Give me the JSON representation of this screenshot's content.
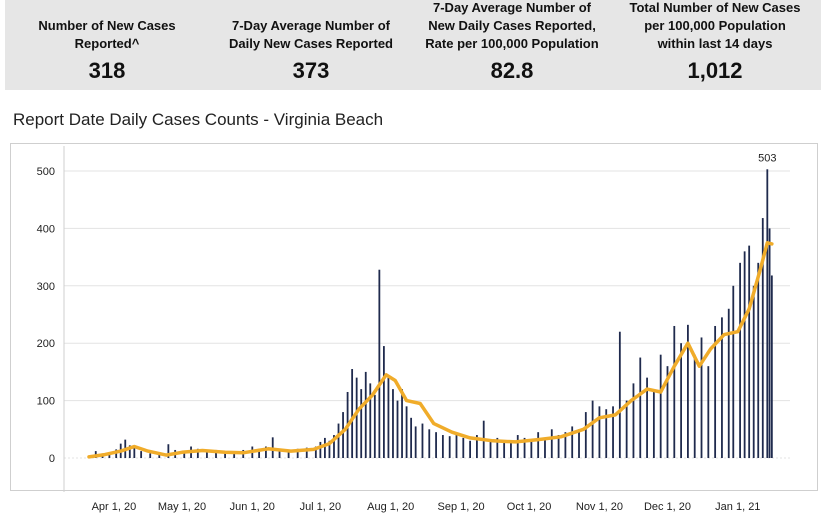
{
  "kpis": [
    {
      "label_lines": [
        "Number of New Cases",
        "Reported^"
      ],
      "value": "318"
    },
    {
      "label_lines": [
        "7-Day Average Number of",
        "Daily New Cases Reported"
      ],
      "value": "373"
    },
    {
      "label_lines": [
        "7-Day Average Number of",
        "New Daily Cases Reported,",
        "Rate per 100,000 Population"
      ],
      "value": "82.8"
    },
    {
      "label_lines": [
        "Total Number of New Cases",
        "per 100,000 Population",
        "within last 14 days"
      ],
      "value": "1,012"
    }
  ],
  "colors": {
    "bar": "#1f2a4d",
    "bar_light": "#b8b8b8",
    "average_line": "#f0ac2a",
    "grid": "#e3e3e3",
    "kpi_background": "#e6e6e6"
  },
  "chart_data": {
    "type": "bar",
    "title": "Report Date Daily Cases Counts - Virginia Beach",
    "xlabel": "",
    "ylabel": "",
    "ylim": [
      0,
      550
    ],
    "yticks": [
      0,
      100,
      200,
      300,
      400,
      500
    ],
    "xlim": [
      "2020-03-10",
      "2021-01-24"
    ],
    "xticks": [
      {
        "date": "2020-04-01",
        "label": "Apr 1, 20"
      },
      {
        "date": "2020-05-01",
        "label": "May 1, 20"
      },
      {
        "date": "2020-06-01",
        "label": "Jun 1, 20"
      },
      {
        "date": "2020-07-01",
        "label": "Jul 1, 20"
      },
      {
        "date": "2020-08-01",
        "label": "Aug 1, 20"
      },
      {
        "date": "2020-09-01",
        "label": "Sep 1, 20"
      },
      {
        "date": "2020-10-01",
        "label": "Oct 1, 20"
      },
      {
        "date": "2020-11-01",
        "label": "Nov 1, 20"
      },
      {
        "date": "2020-12-01",
        "label": "Dec 1, 20"
      },
      {
        "date": "2021-01-01",
        "label": "Jan 1, 21"
      }
    ],
    "annotation": {
      "date": "2021-01-14",
      "value": 503,
      "text": "503"
    },
    "daily_cases": [
      {
        "date": "2020-03-21",
        "value": 2
      },
      {
        "date": "2020-03-24",
        "value": 12
      },
      {
        "date": "2020-03-27",
        "value": 8
      },
      {
        "date": "2020-03-30",
        "value": 10
      },
      {
        "date": "2020-04-02",
        "value": 15
      },
      {
        "date": "2020-04-04",
        "value": 25
      },
      {
        "date": "2020-04-06",
        "value": 32
      },
      {
        "date": "2020-04-08",
        "value": 22
      },
      {
        "date": "2020-04-10",
        "value": 18
      },
      {
        "date": "2020-04-13",
        "value": 12
      },
      {
        "date": "2020-04-17",
        "value": 8
      },
      {
        "date": "2020-04-21",
        "value": 6
      },
      {
        "date": "2020-04-25",
        "value": 24
      },
      {
        "date": "2020-04-28",
        "value": 14
      },
      {
        "date": "2020-05-02",
        "value": 12
      },
      {
        "date": "2020-05-05",
        "value": 20
      },
      {
        "date": "2020-05-08",
        "value": 16
      },
      {
        "date": "2020-05-12",
        "value": 12
      },
      {
        "date": "2020-05-16",
        "value": 14
      },
      {
        "date": "2020-05-20",
        "value": 10
      },
      {
        "date": "2020-05-24",
        "value": 12
      },
      {
        "date": "2020-05-28",
        "value": 14
      },
      {
        "date": "2020-06-01",
        "value": 20
      },
      {
        "date": "2020-06-04",
        "value": 16
      },
      {
        "date": "2020-06-07",
        "value": 20
      },
      {
        "date": "2020-06-10",
        "value": 36
      },
      {
        "date": "2020-06-13",
        "value": 14
      },
      {
        "date": "2020-06-17",
        "value": 12
      },
      {
        "date": "2020-06-21",
        "value": 16
      },
      {
        "date": "2020-06-25",
        "value": 18
      },
      {
        "date": "2020-06-29",
        "value": 20
      },
      {
        "date": "2020-07-01",
        "value": 28
      },
      {
        "date": "2020-07-03",
        "value": 35
      },
      {
        "date": "2020-07-05",
        "value": 30
      },
      {
        "date": "2020-07-07",
        "value": 40
      },
      {
        "date": "2020-07-09",
        "value": 60
      },
      {
        "date": "2020-07-11",
        "value": 80
      },
      {
        "date": "2020-07-13",
        "value": 115
      },
      {
        "date": "2020-07-15",
        "value": 155
      },
      {
        "date": "2020-07-17",
        "value": 140
      },
      {
        "date": "2020-07-19",
        "value": 120
      },
      {
        "date": "2020-07-21",
        "value": 150
      },
      {
        "date": "2020-07-23",
        "value": 130
      },
      {
        "date": "2020-07-25",
        "value": 110
      },
      {
        "date": "2020-07-27",
        "value": 328
      },
      {
        "date": "2020-07-29",
        "value": 195
      },
      {
        "date": "2020-07-31",
        "value": 140
      },
      {
        "date": "2020-08-02",
        "value": 120
      },
      {
        "date": "2020-08-04",
        "value": 100
      },
      {
        "date": "2020-08-06",
        "value": 120
      },
      {
        "date": "2020-08-08",
        "value": 90
      },
      {
        "date": "2020-08-10",
        "value": 70
      },
      {
        "date": "2020-08-12",
        "value": 55
      },
      {
        "date": "2020-08-15",
        "value": 60
      },
      {
        "date": "2020-08-18",
        "value": 50
      },
      {
        "date": "2020-08-21",
        "value": 45
      },
      {
        "date": "2020-08-24",
        "value": 40
      },
      {
        "date": "2020-08-27",
        "value": 38
      },
      {
        "date": "2020-08-30",
        "value": 42
      },
      {
        "date": "2020-09-02",
        "value": 35
      },
      {
        "date": "2020-09-05",
        "value": 30
      },
      {
        "date": "2020-09-08",
        "value": 40
      },
      {
        "date": "2020-09-11",
        "value": 65
      },
      {
        "date": "2020-09-14",
        "value": 30
      },
      {
        "date": "2020-09-17",
        "value": 35
      },
      {
        "date": "2020-09-20",
        "value": 28
      },
      {
        "date": "2020-09-23",
        "value": 30
      },
      {
        "date": "2020-09-26",
        "value": 40
      },
      {
        "date": "2020-09-29",
        "value": 35
      },
      {
        "date": "2020-10-02",
        "value": 30
      },
      {
        "date": "2020-10-05",
        "value": 45
      },
      {
        "date": "2020-10-08",
        "value": 35
      },
      {
        "date": "2020-10-11",
        "value": 50
      },
      {
        "date": "2020-10-14",
        "value": 40
      },
      {
        "date": "2020-10-17",
        "value": 45
      },
      {
        "date": "2020-10-20",
        "value": 55
      },
      {
        "date": "2020-10-23",
        "value": 50
      },
      {
        "date": "2020-10-26",
        "value": 80
      },
      {
        "date": "2020-10-29",
        "value": 100
      },
      {
        "date": "2020-11-01",
        "value": 90
      },
      {
        "date": "2020-11-04",
        "value": 85
      },
      {
        "date": "2020-11-07",
        "value": 90
      },
      {
        "date": "2020-11-10",
        "value": 220
      },
      {
        "date": "2020-11-13",
        "value": 100
      },
      {
        "date": "2020-11-16",
        "value": 130
      },
      {
        "date": "2020-11-19",
        "value": 175
      },
      {
        "date": "2020-11-22",
        "value": 140
      },
      {
        "date": "2020-11-25",
        "value": 120
      },
      {
        "date": "2020-11-28",
        "value": 180
      },
      {
        "date": "2020-12-01",
        "value": 160
      },
      {
        "date": "2020-12-04",
        "value": 230
      },
      {
        "date": "2020-12-07",
        "value": 200
      },
      {
        "date": "2020-12-10",
        "value": 232
      },
      {
        "date": "2020-12-13",
        "value": 180
      },
      {
        "date": "2020-12-16",
        "value": 210
      },
      {
        "date": "2020-12-19",
        "value": 160
      },
      {
        "date": "2020-12-22",
        "value": 230
      },
      {
        "date": "2020-12-25",
        "value": 245
      },
      {
        "date": "2020-12-28",
        "value": 260
      },
      {
        "date": "2020-12-30",
        "value": 300
      },
      {
        "date": "2021-01-02",
        "value": 340
      },
      {
        "date": "2021-01-04",
        "value": 360
      },
      {
        "date": "2021-01-06",
        "value": 370
      },
      {
        "date": "2021-01-08",
        "value": 300
      },
      {
        "date": "2021-01-10",
        "value": 340
      },
      {
        "date": "2021-01-12",
        "value": 418
      },
      {
        "date": "2021-01-14",
        "value": 503
      },
      {
        "date": "2021-01-15",
        "value": 400
      },
      {
        "date": "2021-01-16",
        "value": 318
      }
    ],
    "seven_day_average": [
      {
        "date": "2020-03-21",
        "value": 2
      },
      {
        "date": "2020-03-28",
        "value": 6
      },
      {
        "date": "2020-04-04",
        "value": 12
      },
      {
        "date": "2020-04-10",
        "value": 20
      },
      {
        "date": "2020-04-16",
        "value": 12
      },
      {
        "date": "2020-04-24",
        "value": 5
      },
      {
        "date": "2020-05-01",
        "value": 10
      },
      {
        "date": "2020-05-10",
        "value": 13
      },
      {
        "date": "2020-05-20",
        "value": 10
      },
      {
        "date": "2020-05-28",
        "value": 9
      },
      {
        "date": "2020-06-08",
        "value": 16
      },
      {
        "date": "2020-06-18",
        "value": 12
      },
      {
        "date": "2020-06-28",
        "value": 15
      },
      {
        "date": "2020-07-05",
        "value": 25
      },
      {
        "date": "2020-07-12",
        "value": 50
      },
      {
        "date": "2020-07-18",
        "value": 85
      },
      {
        "date": "2020-07-24",
        "value": 110
      },
      {
        "date": "2020-07-30",
        "value": 145
      },
      {
        "date": "2020-08-03",
        "value": 135
      },
      {
        "date": "2020-08-08",
        "value": 100
      },
      {
        "date": "2020-08-14",
        "value": 95
      },
      {
        "date": "2020-08-20",
        "value": 60
      },
      {
        "date": "2020-08-28",
        "value": 45
      },
      {
        "date": "2020-09-05",
        "value": 35
      },
      {
        "date": "2020-09-15",
        "value": 30
      },
      {
        "date": "2020-09-25",
        "value": 28
      },
      {
        "date": "2020-10-05",
        "value": 32
      },
      {
        "date": "2020-10-15",
        "value": 37
      },
      {
        "date": "2020-10-25",
        "value": 50
      },
      {
        "date": "2020-11-01",
        "value": 70
      },
      {
        "date": "2020-11-08",
        "value": 75
      },
      {
        "date": "2020-11-15",
        "value": 100
      },
      {
        "date": "2020-11-22",
        "value": 120
      },
      {
        "date": "2020-11-28",
        "value": 115
      },
      {
        "date": "2020-12-04",
        "value": 160
      },
      {
        "date": "2020-12-10",
        "value": 200
      },
      {
        "date": "2020-12-15",
        "value": 160
      },
      {
        "date": "2020-12-20",
        "value": 190
      },
      {
        "date": "2020-12-26",
        "value": 215
      },
      {
        "date": "2021-01-01",
        "value": 220
      },
      {
        "date": "2021-01-06",
        "value": 260
      },
      {
        "date": "2021-01-11",
        "value": 330
      },
      {
        "date": "2021-01-14",
        "value": 375
      },
      {
        "date": "2021-01-16",
        "value": 373
      }
    ]
  }
}
